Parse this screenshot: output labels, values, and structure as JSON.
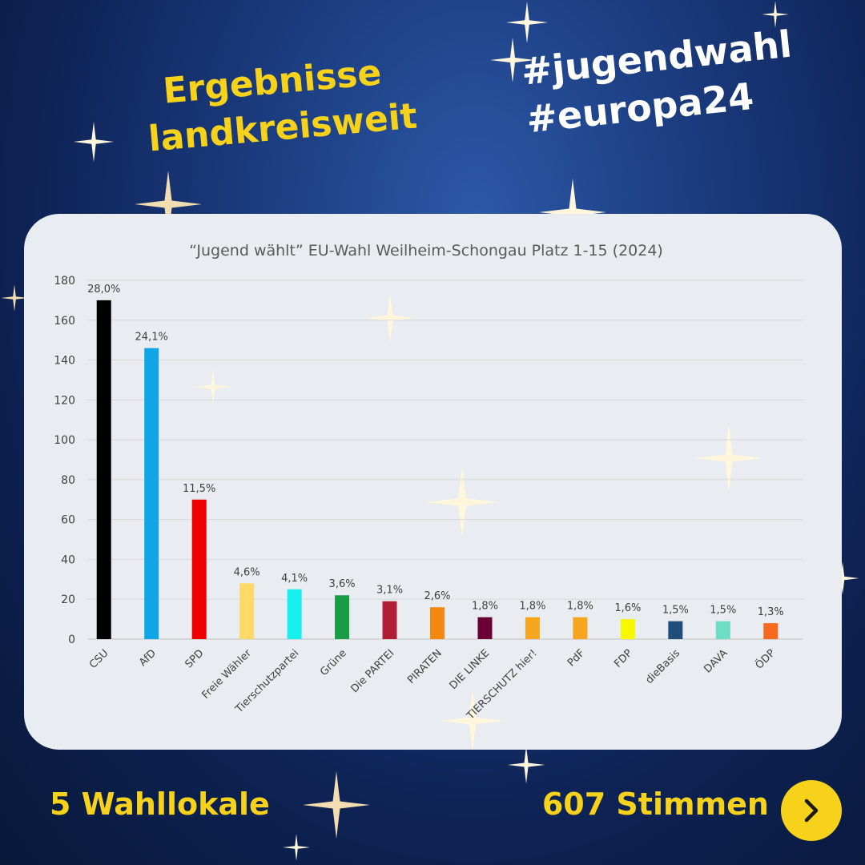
{
  "headline": {
    "line1": "Ergebnisse",
    "line2": "landkreisweit"
  },
  "hashtags": {
    "line1": "#jugendwahl",
    "line2": "#europa24"
  },
  "footer": {
    "polling_stations": "5 Wahllokale",
    "votes": "607 Stimmen"
  },
  "next_icon": "chevron-right-icon",
  "colors": {
    "accent": "#f7d21a",
    "background": "#0e2356",
    "panel": "#e9ecf0"
  },
  "chart_data": {
    "type": "bar",
    "title": "“Jugend wählt” EU-Wahl Weilheim-Schongau Platz 1-15 (2024)",
    "xlabel": "",
    "ylabel": "",
    "ylim": [
      0,
      180
    ],
    "yticks": [
      0,
      20,
      40,
      60,
      80,
      100,
      120,
      140,
      160,
      180
    ],
    "grid": true,
    "categories": [
      "CSU",
      "AfD",
      "SPD",
      "Freie Wähler",
      "Tierschutzpartei",
      "Grüne",
      "Die PARTEI",
      "PIRATEN",
      "DIE LINKE",
      "TIERSCHUTZ hier!",
      "PdF",
      "FDP",
      "dieBasis",
      "DAVA",
      "ÖDP"
    ],
    "values": [
      170,
      146,
      70,
      28,
      25,
      22,
      19,
      16,
      11,
      11,
      11,
      10,
      9,
      9,
      8
    ],
    "labels": [
      "28,0%",
      "24,1%",
      "11,5%",
      "4,6%",
      "4,1%",
      "3,6%",
      "3,1%",
      "2,6%",
      "1,8%",
      "1,8%",
      "1,8%",
      "1,6%",
      "1,5%",
      "1,5%",
      "1,3%"
    ],
    "colors": [
      "#000000",
      "#10a5e6",
      "#ee0000",
      "#ffd966",
      "#19f0f0",
      "#1a9c45",
      "#b01e35",
      "#f58810",
      "#6a0035",
      "#f5a51e",
      "#f5a51e",
      "#f7f700",
      "#1f4e7a",
      "#6fdcc4",
      "#f56a1e"
    ]
  }
}
